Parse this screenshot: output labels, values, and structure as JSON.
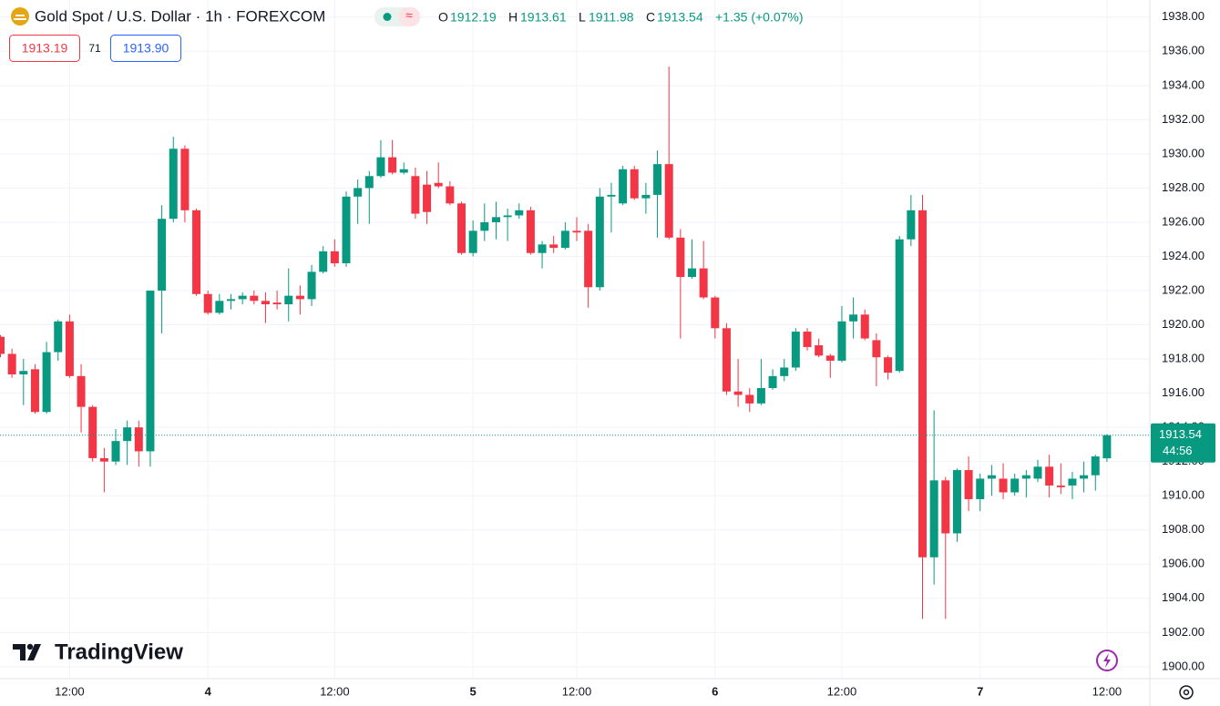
{
  "header": {
    "symbol": "Gold Spot / U.S. Dollar · 1h · FOREXCOM",
    "ohlc_letters": [
      "O",
      "H",
      "L",
      "C"
    ],
    "change": "+1.35 (+0.07%)",
    "bid": "1913.19",
    "spread": "71",
    "ask": "1913.90",
    "countdown": "44:56",
    "brand": "TradingView"
  },
  "chart_data": {
    "type": "candlestick",
    "up_color": "#089981",
    "down_color": "#f23645",
    "grid": true,
    "categories": [
      null,
      null,
      null,
      null,
      null,
      null,
      "12:00",
      null,
      null,
      null,
      null,
      null,
      null,
      null,
      null,
      null,
      null,
      null,
      "4",
      null,
      null,
      null,
      null,
      null,
      null,
      null,
      null,
      null,
      null,
      "12:00",
      null,
      null,
      null,
      null,
      null,
      null,
      null,
      null,
      null,
      null,
      null,
      "5",
      null,
      null,
      null,
      null,
      null,
      null,
      null,
      null,
      "12:00",
      null,
      null,
      null,
      null,
      null,
      null,
      null,
      null,
      null,
      null,
      null,
      "6",
      null,
      null,
      null,
      null,
      null,
      null,
      null,
      null,
      null,
      null,
      "12:00",
      null,
      null,
      null,
      null,
      null,
      null,
      null,
      null,
      null,
      null,
      null,
      "7",
      null,
      null,
      null,
      null,
      null,
      null,
      null,
      null,
      null,
      null,
      "12:00"
    ],
    "open": [
      1919.3,
      1918.3,
      1917.1,
      1917.4,
      1914.9,
      1918.4,
      1920.2,
      1917,
      1915.2,
      1912.2,
      1912,
      1913.2,
      1914,
      1912.6,
      1922,
      1926.2,
      1930.3,
      1926.7,
      1921.8,
      1920.7,
      1921.4,
      1921.5,
      1921.7,
      1921.4,
      1921.3,
      1921.2,
      1921.7,
      1921.5,
      1923.1,
      1924.3,
      1923.6,
      1927.5,
      1928,
      1928.7,
      1929.8,
      1928.9,
      1928.7,
      1928.2,
      1928.3,
      1928.1,
      1927.1,
      1924.2,
      1925.5,
      1926,
      1926.3,
      1926.4,
      1926.7,
      1924.2,
      1924.7,
      1924.5,
      1925.5,
      1925.5,
      1922.2,
      1927.5,
      1927.1,
      1929.1,
      1927.4,
      1927.6,
      1929.4,
      1925.1,
      1922.8,
      1923.3,
      1921.6,
      1919.8,
      1916.1,
      1915.9,
      1915.4,
      1916.3,
      1917,
      1917.5,
      1919.6,
      1918.8,
      1918.2,
      1917.9,
      1920.2,
      1920.6,
      1919.1,
      1918.1,
      1917.3,
      1925,
      1926.7,
      1906.4,
      1910.9,
      1907.8,
      1911.5,
      1909.8,
      1911,
      1911,
      1910.2,
      1911,
      1911,
      1911.7,
      1910.6,
      1910.6,
      1911,
      1911.2,
      1912.19
    ],
    "high": [
      1919.4,
      1918.6,
      1918,
      1917.7,
      1919,
      1920.3,
      1920.6,
      1917.7,
      1915.3,
      1912.8,
      1913.9,
      1914.4,
      1914.4,
      1922,
      1927,
      1931,
      1930.5,
      1926.8,
      1922,
      1921.8,
      1921.8,
      1921.9,
      1922,
      1921.9,
      1922,
      1923.3,
      1922.3,
      1923.5,
      1924.6,
      1925,
      1927.8,
      1928.5,
      1929,
      1930.8,
      1930.8,
      1929.5,
      1929.2,
      1929,
      1929.5,
      1928.4,
      1927.2,
      1926.1,
      1927.1,
      1927.2,
      1926.8,
      1927.1,
      1926.9,
      1924.9,
      1925.2,
      1926,
      1926.3,
      1925.9,
      1928,
      1928.3,
      1929.3,
      1929.3,
      1928.3,
      1930.2,
      1935.1,
      1925.6,
      1925,
      1924.9,
      1921.7,
      1920.1,
      1918,
      1916.3,
      1918,
      1917.4,
      1918,
      1919.8,
      1919.8,
      1919.2,
      1918.3,
      1921.1,
      1921.6,
      1920.9,
      1919.5,
      1918.2,
      1925.2,
      1927.6,
      1927.6,
      1915,
      1911.1,
      1911.6,
      1912.3,
      1911.3,
      1911.8,
      1911.9,
      1911.3,
      1911.5,
      1912.1,
      1912.4,
      1911.9,
      1911.4,
      1912,
      1912.4,
      1913.61
    ],
    "low": [
      1918.1,
      1916.9,
      1915.3,
      1914.8,
      1914.8,
      1917.9,
      1916.9,
      1913.7,
      1912,
      1910.2,
      1911.8,
      1911.8,
      1911.7,
      1911.7,
      1919.5,
      1926,
      1926,
      1921.7,
      1920.6,
      1920.6,
      1920.9,
      1921.2,
      1921.2,
      1920.1,
      1920.9,
      1920.2,
      1920.6,
      1921.1,
      1923,
      1923.4,
      1923.4,
      1925.9,
      1925.9,
      1928.6,
      1928.8,
      1928.8,
      1926.2,
      1925.9,
      1928,
      1927,
      1924.1,
      1924,
      1924.9,
      1925,
      1924.9,
      1926.2,
      1924.1,
      1923.3,
      1924.2,
      1924.4,
      1924.9,
      1921,
      1922,
      1925.4,
      1927,
      1927.3,
      1926.5,
      1925.1,
      1925,
      1919.2,
      1922.7,
      1921.5,
      1919.2,
      1915.9,
      1915.2,
      1914.9,
      1915.3,
      1916.2,
      1916.7,
      1917.3,
      1918.5,
      1918.1,
      1916.9,
      1917.8,
      1919.2,
      1919.1,
      1916.4,
      1916.8,
      1917.2,
      1924.6,
      1902.8,
      1904.8,
      1902.8,
      1907.3,
      1909.1,
      1909.1,
      1910,
      1909.8,
      1910,
      1909.9,
      1910.8,
      1909.9,
      1910.1,
      1909.8,
      1910.2,
      1910.3,
      1911.98
    ],
    "close": [
      1918.3,
      1917.1,
      1917.3,
      1914.9,
      1918.4,
      1920.2,
      1917,
      1915.2,
      1912.2,
      1912,
      1913.2,
      1914,
      1912.6,
      1922,
      1926.2,
      1930.3,
      1926.7,
      1921.8,
      1920.7,
      1921.4,
      1921.5,
      1921.7,
      1921.4,
      1921.2,
      1921.2,
      1921.7,
      1921.5,
      1923.1,
      1924.3,
      1923.6,
      1927.5,
      1928,
      1928.7,
      1929.8,
      1928.9,
      1929.1,
      1926.5,
      1926.6,
      1928.1,
      1927.1,
      1924.2,
      1925.5,
      1926,
      1926.3,
      1926.4,
      1926.7,
      1924.2,
      1924.7,
      1924.5,
      1925.5,
      1925.4,
      1922.2,
      1927.5,
      1927.6,
      1929.1,
      1927.4,
      1927.6,
      1929.4,
      1925.1,
      1922.8,
      1923.3,
      1921.6,
      1919.8,
      1916.1,
      1915.9,
      1915.4,
      1916.3,
      1917,
      1917.5,
      1919.6,
      1918.7,
      1918.2,
      1917.9,
      1920.2,
      1920.6,
      1919.2,
      1918.1,
      1917.2,
      1925,
      1926.7,
      1906.4,
      1910.9,
      1907.8,
      1911.5,
      1909.8,
      1911,
      1911.2,
      1910.2,
      1911,
      1911.2,
      1911.7,
      1910.6,
      1910.5,
      1911,
      1911.2,
      1912.3,
      1913.54
    ],
    "ylim": [
      1899.3,
      1939.0
    ],
    "yticks": [
      {
        "value": 1900,
        "label": "1900.00"
      },
      {
        "value": 1902,
        "label": "1902.00"
      },
      {
        "value": 1904,
        "label": "1904.00"
      },
      {
        "value": 1906,
        "label": "1906.00"
      },
      {
        "value": 1908,
        "label": "1908.00"
      },
      {
        "value": 1910,
        "label": "1910.00"
      },
      {
        "value": 1912,
        "label": "1912.00"
      },
      {
        "value": 1914,
        "label": "1914.00"
      },
      {
        "value": 1916,
        "label": "1916.00"
      },
      {
        "value": 1918,
        "label": "1918.00"
      },
      {
        "value": 1920,
        "label": "1920.00"
      },
      {
        "value": 1922,
        "label": "1922.00"
      },
      {
        "value": 1924,
        "label": "1924.00"
      },
      {
        "value": 1926,
        "label": "1926.00"
      },
      {
        "value": 1928,
        "label": "1928.00"
      },
      {
        "value": 1930,
        "label": "1930.00"
      },
      {
        "value": 1932,
        "label": "1932.00"
      },
      {
        "value": 1934,
        "label": "1934.00"
      },
      {
        "value": 1936,
        "label": "1936.00"
      },
      {
        "value": 1938,
        "label": "1938.00"
      }
    ]
  }
}
